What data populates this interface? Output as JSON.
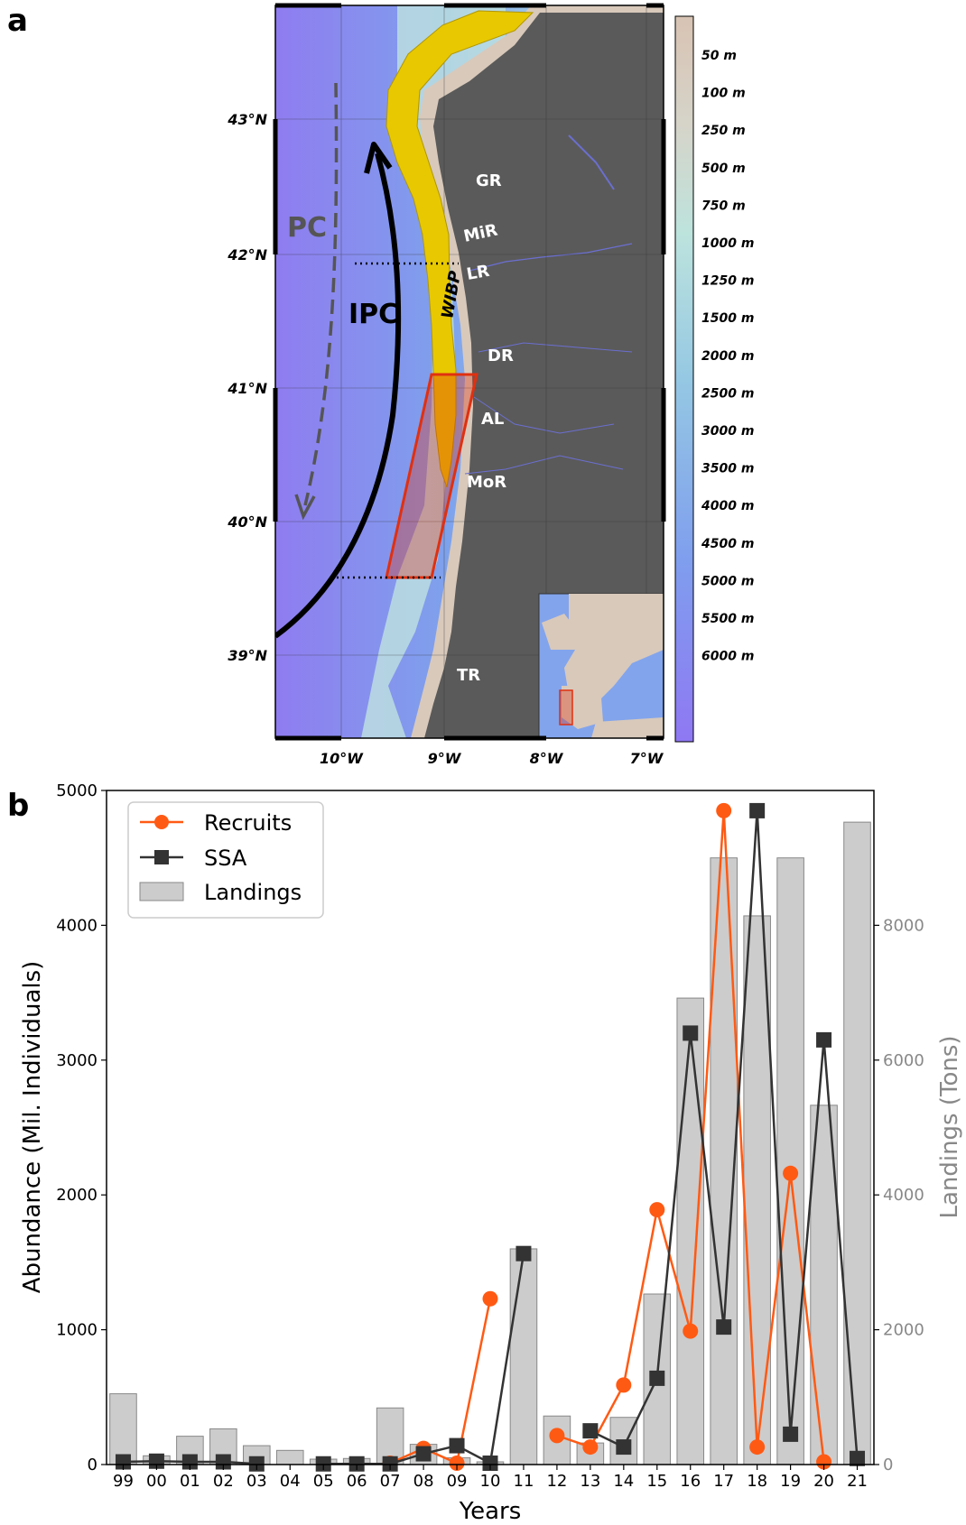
{
  "panels": {
    "a": "a",
    "b": "b"
  },
  "map": {
    "lat_labels": [
      "43°N",
      "42°N",
      "41°N",
      "40°N",
      "39°N"
    ],
    "lon_labels": [
      "10°W",
      "9°W",
      "8°W",
      "7°W"
    ],
    "places": [
      "GR",
      "MiR",
      "LR",
      "DR",
      "AL",
      "MoR",
      "TR"
    ],
    "currents": {
      "pc": "PC",
      "ipc": "IPC",
      "wibp": "WIBP"
    },
    "depth_scale": [
      "50 m",
      "100 m",
      "250 m",
      "500 m",
      "750 m",
      "1000 m",
      "1250 m",
      "1500 m",
      "2000 m",
      "2500 m",
      "3000 m",
      "3500 m",
      "4000 m",
      "4500 m",
      "5000 m",
      "5500 m",
      "6000 m"
    ],
    "colors": {
      "land": "#5a5a5a",
      "ocean_deep": "#8f7cf0",
      "ocean_mid": "#7aa6ec",
      "shelf": "#bfe2e0",
      "coast": "#d8c9bb",
      "wibp": "#e8c800",
      "box": "#e03010",
      "pc": "#555555",
      "ipc": "#000000"
    }
  },
  "chart_data": {
    "type": "bar+line",
    "categories": [
      "99",
      "00",
      "01",
      "02",
      "03",
      "04",
      "05",
      "06",
      "07",
      "08",
      "09",
      "10",
      "11",
      "12",
      "13",
      "14",
      "15",
      "16",
      "17",
      "18",
      "19",
      "20",
      "21"
    ],
    "xlabel": "Years",
    "ylabel": "Abundance (Mil. Individuals)",
    "ylabel_right": "Landings (Tons)",
    "ylim": [
      0,
      5000
    ],
    "ylim_right": [
      0,
      10000
    ],
    "yticks": [
      0,
      1000,
      2000,
      3000,
      4000,
      5000
    ],
    "yticks_right": [
      0,
      2000,
      4000,
      6000,
      8000
    ],
    "legend_position": "top-left",
    "series": [
      {
        "name": "Recruits",
        "type": "line",
        "axis": "left",
        "color": "#ff5a14",
        "values": [
          null,
          null,
          null,
          null,
          null,
          null,
          null,
          null,
          10,
          120,
          10,
          1230,
          null,
          215,
          130,
          590,
          1890,
          990,
          4850,
          130,
          2160,
          20,
          null
        ]
      },
      {
        "name": "SSA",
        "type": "line",
        "axis": "left",
        "color": "#333333",
        "values": [
          20,
          25,
          20,
          20,
          5,
          null,
          5,
          5,
          5,
          80,
          140,
          10,
          1565,
          null,
          250,
          130,
          640,
          3200,
          1020,
          4850,
          225,
          3150,
          45
        ]
      },
      {
        "name": "Landings",
        "type": "bar",
        "axis": "right",
        "color": "#cccccc",
        "values": [
          1050,
          130,
          420,
          530,
          280,
          210,
          80,
          90,
          840,
          300,
          100,
          40,
          3200,
          720,
          320,
          700,
          2530,
          6920,
          9000,
          8140,
          9000,
          5330,
          9530
        ]
      }
    ]
  }
}
